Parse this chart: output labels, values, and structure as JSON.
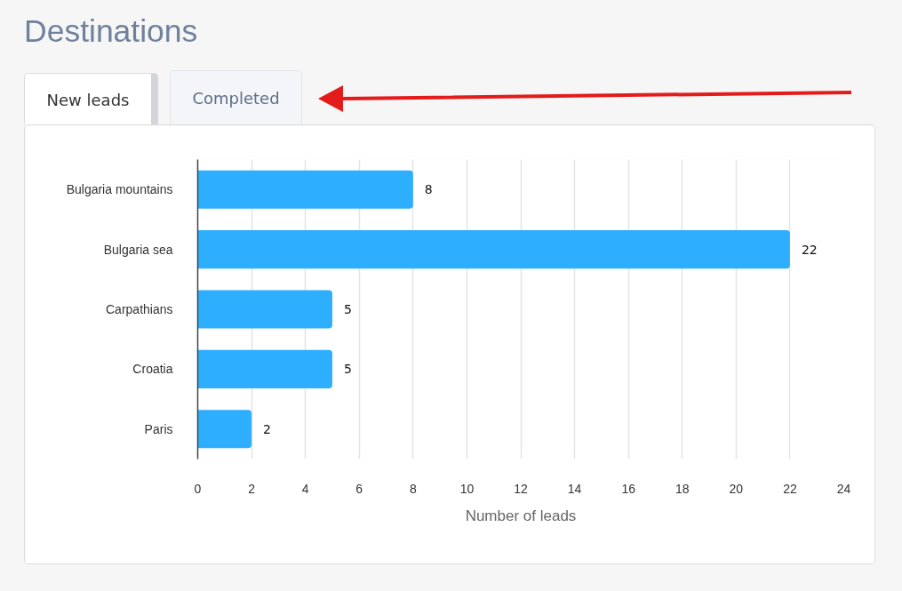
{
  "chart_data": {
    "type": "bar",
    "title": "Destinations",
    "annotations": [
      "New leads",
      "Completed"
    ],
    "orientation": "horizontal",
    "categories": [
      "Bulgaria mountains",
      "Bulgaria sea",
      "Carpathians",
      "Croatia",
      "Paris"
    ],
    "values": [
      8,
      22,
      5,
      5,
      2
    ],
    "color": "#2eaeff",
    "data_labels": true,
    "xlim": [
      0,
      24
    ],
    "xticks": [
      0,
      2,
      4,
      6,
      8,
      10,
      12,
      14,
      16,
      18,
      20,
      22,
      24
    ],
    "xlabel": "Number of leads",
    "grid": "x"
  }
}
